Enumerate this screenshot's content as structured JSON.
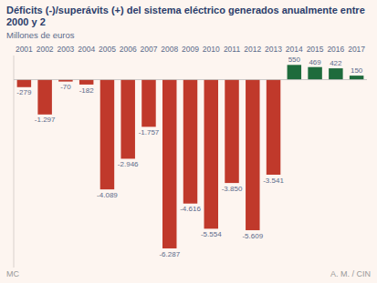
{
  "chart_data": {
    "type": "bar",
    "title": "Déficits (-)/superávits (+) del sistema eléctrico generados anualmente entre 2000 y 2",
    "subtitle": "Millones de euros",
    "categories": [
      "2001",
      "2002",
      "2003",
      "2004",
      "2005",
      "2006",
      "2007",
      "2008",
      "2009",
      "2010",
      "2011",
      "2012",
      "2013",
      "2014",
      "2015",
      "2016",
      "2017"
    ],
    "values": [
      -279,
      -1297,
      -70,
      -182,
      -4089,
      -2946,
      -1757,
      -6287,
      -4616,
      -5554,
      -3850,
      -5609,
      -3541,
      550,
      469,
      422,
      150
    ],
    "value_labels": [
      "-279",
      "-1.297",
      "-70",
      "-182",
      "-4.089",
      "-2.946",
      "-1.757",
      "-6.287",
      "-4.616",
      "-5.554",
      "-3.850",
      "-5.609",
      "-3.541",
      "550",
      "469",
      "422",
      "150"
    ],
    "colors": [
      "#c0392b",
      "#c0392b",
      "#c0392b",
      "#c0392b",
      "#c0392b",
      "#c0392b",
      "#c0392b",
      "#c0392b",
      "#c0392b",
      "#c0392b",
      "#c0392b",
      "#c0392b",
      "#c0392b",
      "#1e6b3c",
      "#1e6b3c",
      "#1e6b3c",
      "#1e6b3c"
    ],
    "ylim": [
      -7000,
      900
    ],
    "data_labels": true,
    "tick_labels": "x",
    "annotations": [
      "MC",
      "A. M. / CIN"
    ]
  }
}
